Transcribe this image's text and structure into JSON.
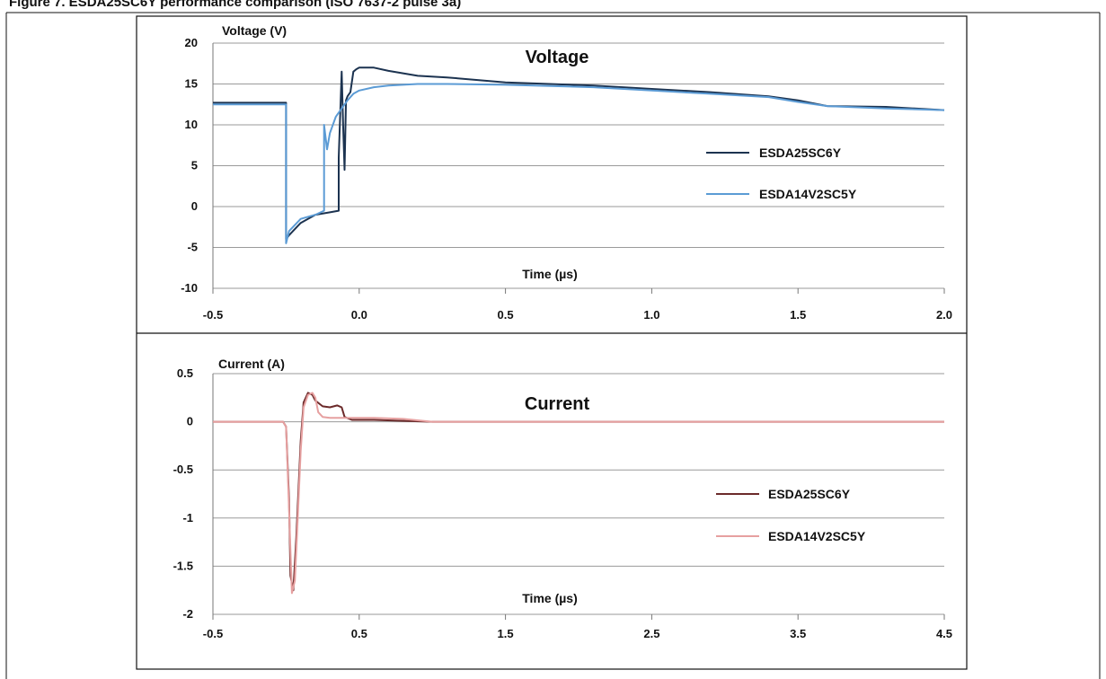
{
  "figure_caption": "Figure 7. ESDA25SC6Y performance comparison (ISO 7637-2 pulse 3a)",
  "colors": {
    "v_series1": "#1c3350",
    "v_series2": "#5b9bd5",
    "i_series1": "#6b2a2a",
    "i_series2": "#e6a0a0",
    "grid": "#9a9a9a"
  },
  "chart_data": [
    {
      "type": "line",
      "title": "Voltage",
      "xlabel": "Time (µs)",
      "ylabel": "Voltage (V)",
      "xlim": [
        -0.5,
        2.0
      ],
      "ylim": [
        -10,
        20
      ],
      "x_ticks": [
        "-0.5",
        "0.0",
        "0.5",
        "1.0",
        "1.5",
        "2.0"
      ],
      "y_ticks": [
        "20",
        "15",
        "10",
        "5",
        "0",
        "-5",
        "-10"
      ],
      "grid": true,
      "legend_position": "right",
      "series": [
        {
          "name": "ESDA25SC6Y",
          "x": [
            -0.5,
            -0.3,
            -0.25,
            -0.25,
            -0.24,
            -0.2,
            -0.15,
            -0.1,
            -0.07,
            -0.07,
            -0.06,
            -0.055,
            -0.05,
            -0.045,
            -0.04,
            -0.03,
            -0.02,
            -0.01,
            0.0,
            0.05,
            0.1,
            0.2,
            0.3,
            0.5,
            0.8,
            1.0,
            1.2,
            1.4,
            1.5,
            1.6,
            1.8,
            2.0
          ],
          "y": [
            12.7,
            12.7,
            12.7,
            -4.0,
            -3.5,
            -2.0,
            -1.0,
            -0.7,
            -0.5,
            6.0,
            16.5,
            10.0,
            4.5,
            13.0,
            13.5,
            14.0,
            16.5,
            16.8,
            17.0,
            17.0,
            16.6,
            16.0,
            15.8,
            15.2,
            14.8,
            14.4,
            14.0,
            13.5,
            13.0,
            12.3,
            12.2,
            11.8
          ]
        },
        {
          "name": "ESDA14V2SC5Y",
          "x": [
            -0.5,
            -0.3,
            -0.25,
            -0.25,
            -0.24,
            -0.2,
            -0.15,
            -0.12,
            -0.12,
            -0.11,
            -0.1,
            -0.08,
            -0.06,
            -0.04,
            -0.02,
            0.0,
            0.05,
            0.1,
            0.2,
            0.3,
            0.5,
            0.8,
            1.0,
            1.2,
            1.4,
            1.5,
            1.6,
            1.8,
            2.0
          ],
          "y": [
            12.5,
            12.5,
            12.5,
            -4.5,
            -3.0,
            -1.5,
            -1.0,
            -0.5,
            10.0,
            7.0,
            9.0,
            11.0,
            12.0,
            13.0,
            13.8,
            14.2,
            14.6,
            14.8,
            15.0,
            15.0,
            14.9,
            14.6,
            14.2,
            13.8,
            13.4,
            12.8,
            12.3,
            12.0,
            11.8
          ]
        }
      ]
    },
    {
      "type": "line",
      "title": "Current",
      "xlabel": "Time (µs)",
      "ylabel": "Current (A)",
      "xlim": [
        -0.5,
        4.5
      ],
      "ylim": [
        -2,
        0.5
      ],
      "x_ticks": [
        "-0.5",
        "0.5",
        "1.5",
        "2.5",
        "3.5",
        "4.5"
      ],
      "y_ticks": [
        "0.5",
        "0",
        "-0.5",
        "-1",
        "-1.5",
        "-2"
      ],
      "grid": true,
      "legend_position": "right",
      "series": [
        {
          "name": "ESDA25SC6Y",
          "x": [
            -0.5,
            -0.02,
            0.0,
            0.02,
            0.03,
            0.05,
            0.07,
            0.1,
            0.12,
            0.15,
            0.18,
            0.2,
            0.25,
            0.3,
            0.35,
            0.38,
            0.4,
            0.45,
            0.6,
            1.0,
            2.0,
            3.0,
            4.5
          ],
          "y": [
            0.0,
            0.0,
            -0.05,
            -0.8,
            -1.6,
            -1.75,
            -1.2,
            -0.2,
            0.2,
            0.3,
            0.28,
            0.22,
            0.16,
            0.15,
            0.17,
            0.15,
            0.05,
            0.02,
            0.02,
            0.0,
            0.0,
            0.0,
            0.0
          ]
        },
        {
          "name": "ESDA14V2SC5Y",
          "x": [
            -0.5,
            -0.02,
            0.0,
            0.02,
            0.04,
            0.06,
            0.08,
            0.1,
            0.12,
            0.15,
            0.18,
            0.2,
            0.22,
            0.25,
            0.3,
            0.35,
            0.4,
            0.6,
            0.8,
            1.0,
            2.0,
            3.0,
            4.5
          ],
          "y": [
            0.0,
            0.0,
            -0.05,
            -0.9,
            -1.78,
            -1.65,
            -1.0,
            -0.3,
            0.15,
            0.28,
            0.3,
            0.25,
            0.1,
            0.05,
            0.04,
            0.04,
            0.04,
            0.04,
            0.03,
            0.0,
            0.0,
            0.0,
            0.0
          ]
        }
      ]
    }
  ]
}
